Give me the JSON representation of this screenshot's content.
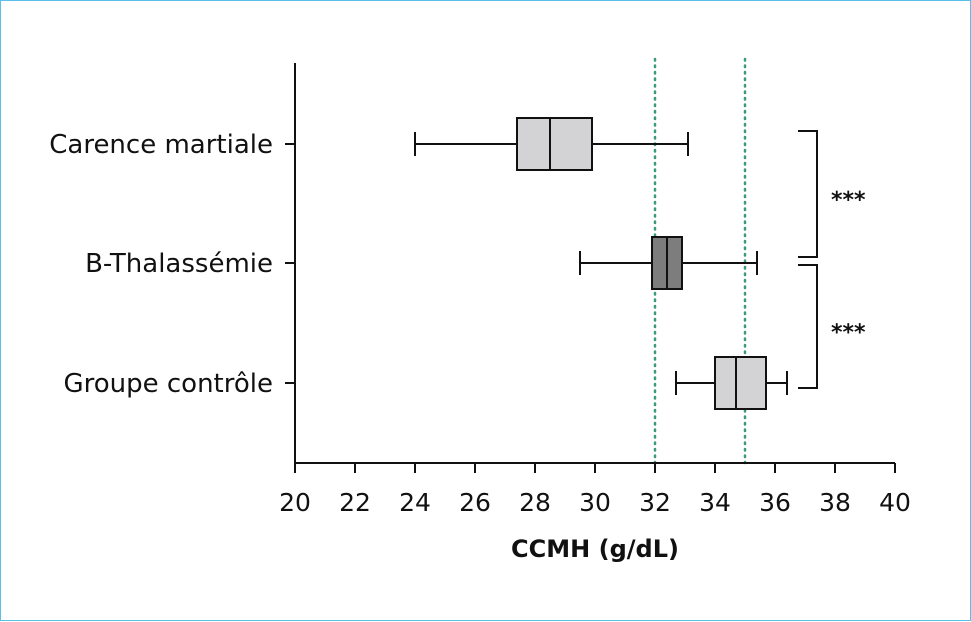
{
  "chart_data": {
    "type": "boxplot",
    "orientation": "horizontal",
    "xlabel": "CCMH (g/dL)",
    "xlim": [
      20,
      40
    ],
    "xticks": [
      20,
      22,
      24,
      26,
      28,
      30,
      32,
      34,
      36,
      38,
      40
    ],
    "grid": false,
    "reference_lines": [
      32,
      35
    ],
    "reference_line_color": "#3a9a7a",
    "categories": [
      "Carence martiale",
      "B-Thalassémie",
      "Groupe contrôle"
    ],
    "series": [
      {
        "label": "Carence martiale",
        "whisker_low": 24.0,
        "q1": 27.4,
        "median": 28.5,
        "q3": 29.9,
        "whisker_high": 33.1,
        "color": "#d3d3d5"
      },
      {
        "label": "B-Thalassémie",
        "whisker_low": 29.5,
        "q1": 31.9,
        "median": 32.4,
        "q3": 32.9,
        "whisker_high": 35.4,
        "color": "#7d7d7d"
      },
      {
        "label": "Groupe contrôle",
        "whisker_low": 32.7,
        "q1": 34.0,
        "median": 34.7,
        "q3": 35.7,
        "whisker_high": 36.4,
        "color": "#d3d3d5"
      }
    ],
    "significance": [
      {
        "between": [
          "Carence martiale",
          "B-Thalassémie"
        ],
        "label": "***"
      },
      {
        "between": [
          "B-Thalassémie",
          "Groupe contrôle"
        ],
        "label": "***"
      }
    ]
  }
}
